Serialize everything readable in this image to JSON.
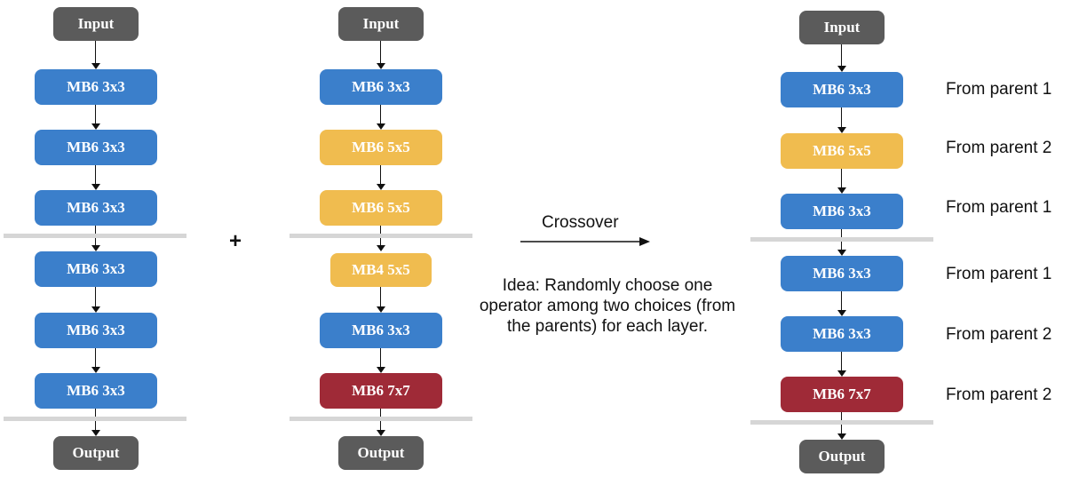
{
  "colors": {
    "conv3x3": "#3b7fcb",
    "conv5x5": "#f0bc4f",
    "conv7x7": "#9f2a37",
    "io": "#5b5b5b",
    "separator": "#d6d6d6"
  },
  "parent1": {
    "input": "Input",
    "ops": [
      "MB6 3x3",
      "MB6 3x3",
      "MB6 3x3",
      "MB6 3x3",
      "MB6 3x3",
      "MB6 3x3"
    ],
    "output": "Output"
  },
  "parent2": {
    "input": "Input",
    "ops": [
      "MB6 3x3",
      "MB6 5x5",
      "MB6 5x5",
      "MB4 5x5",
      "MB6 3x3",
      "MB6 7x7"
    ],
    "output": "Output"
  },
  "operator": "+",
  "crossover": {
    "label": "Crossover",
    "idea": "Idea: Randomly choose one operator among two choices (from the parents) for each layer."
  },
  "child": {
    "input": "Input",
    "ops": [
      "MB6 3x3",
      "MB6 5x5",
      "MB6 3x3",
      "MB6 3x3",
      "MB6 3x3",
      "MB6 7x7"
    ],
    "sources": [
      "From parent 1",
      "From parent 2",
      "From parent 1",
      "From parent 1",
      "From parent 2",
      "From parent 2"
    ],
    "output": "Output"
  }
}
